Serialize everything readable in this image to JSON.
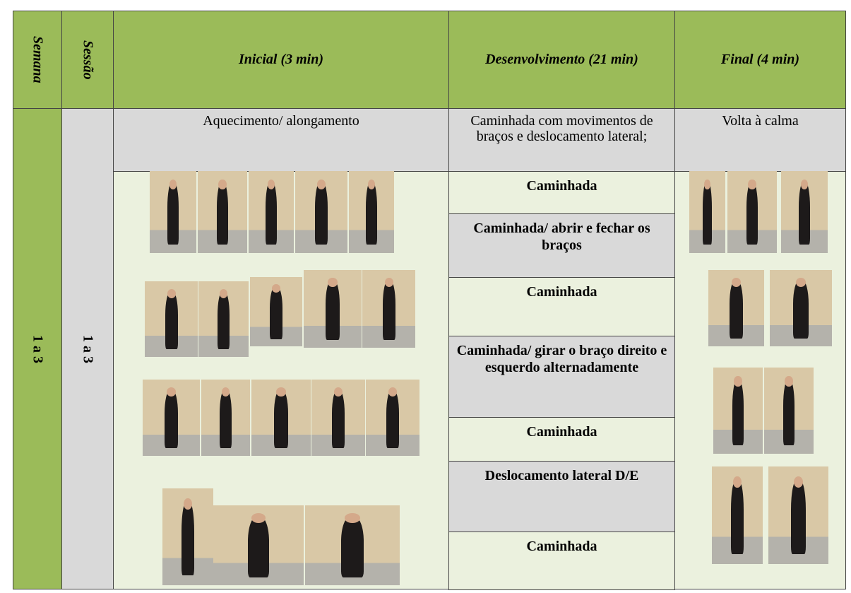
{
  "header": {
    "semana": "Semana",
    "sessao": "Sessão",
    "inicial": "Inicial (3 min)",
    "desenvolvimento": "Desenvolvimento (21 min)",
    "final": "Final (4 min)"
  },
  "body": {
    "semana": "1 a 3",
    "sessao": "1 a 3",
    "inicial": "Aquecimento/ alongamento",
    "desenvolvimento": "Caminhada com movimentos de braços e deslocamento lateral;",
    "final": "Volta à calma",
    "activities": [
      "Caminhada",
      "Caminhada/ abrir e fechar os braços",
      "Caminhada",
      "Caminhada/ girar o braço direito e esquerdo alternadamente",
      "Caminhada",
      "Deslocamento lateral D/E",
      "Caminhada"
    ]
  }
}
